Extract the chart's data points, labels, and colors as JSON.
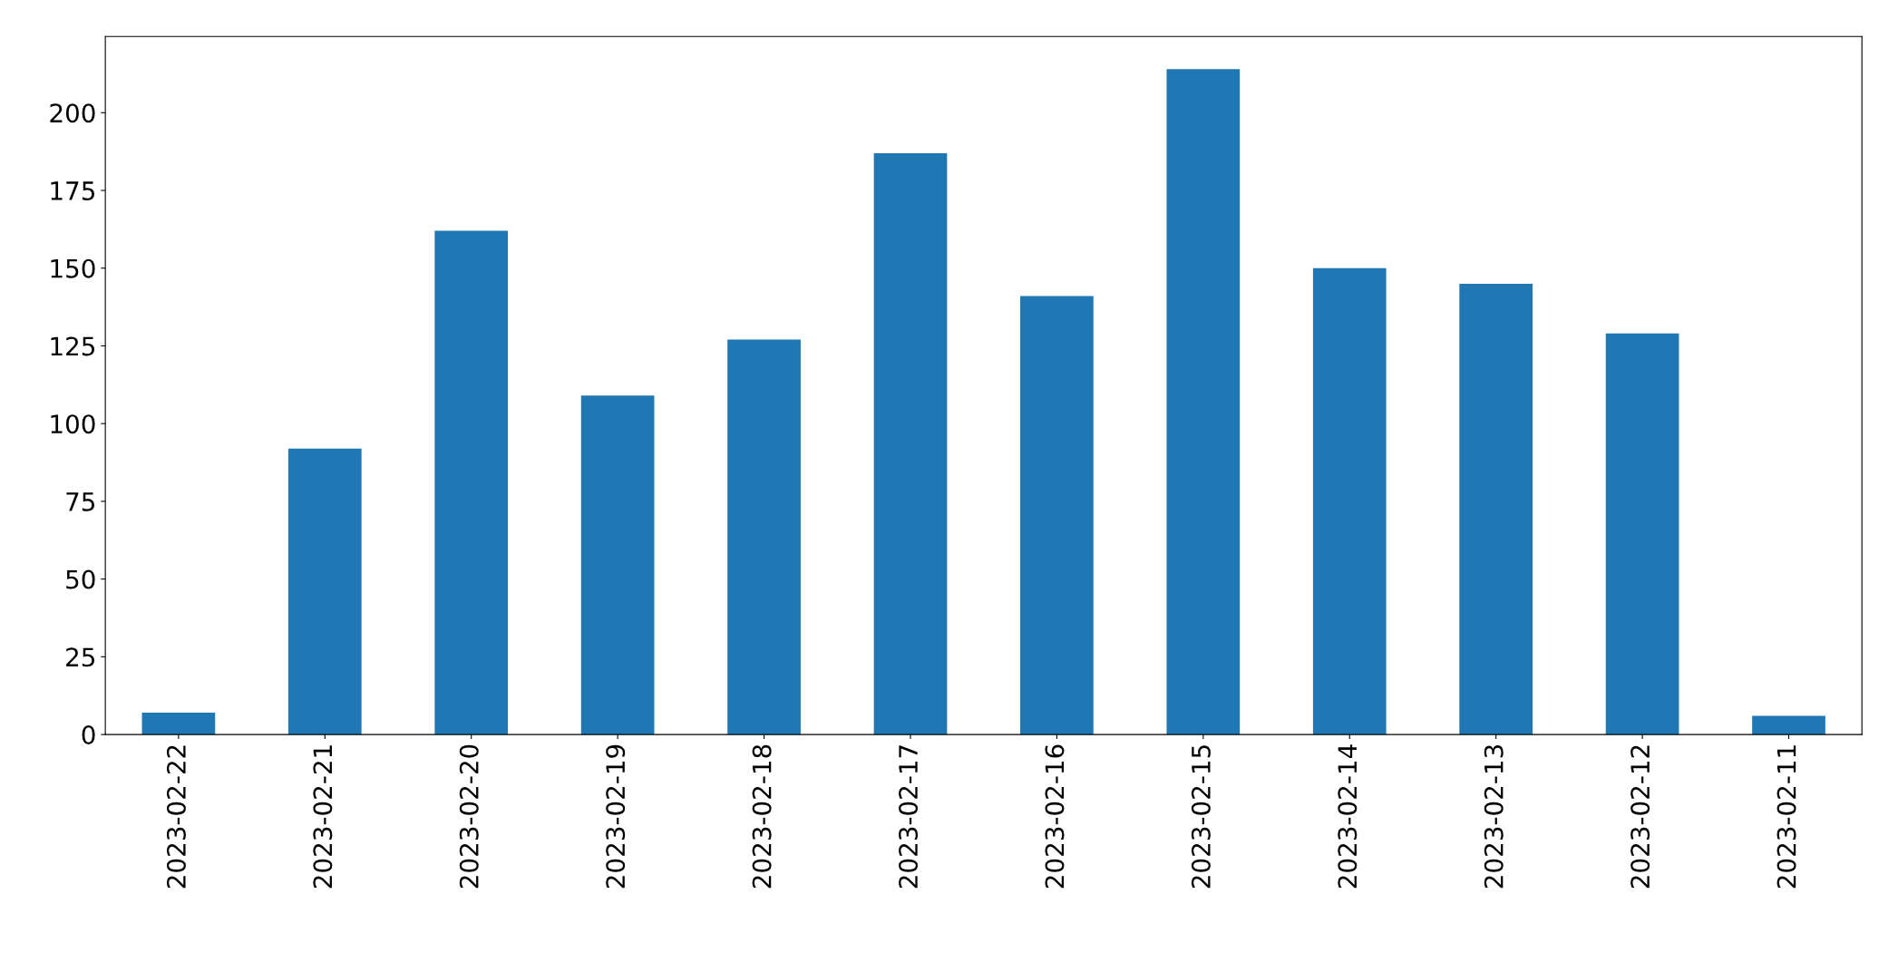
{
  "chart_data": {
    "type": "bar",
    "categories": [
      "2023-02-22",
      "2023-02-21",
      "2023-02-20",
      "2023-02-19",
      "2023-02-18",
      "2023-02-17",
      "2023-02-16",
      "2023-02-15",
      "2023-02-14",
      "2023-02-13",
      "2023-02-12",
      "2023-02-11"
    ],
    "values": [
      7,
      92,
      162,
      109,
      127,
      187,
      141,
      214,
      150,
      145,
      129,
      6
    ],
    "color": "#1f77b4",
    "ylim": [
      0,
      224.5
    ],
    "yticks": [
      0,
      25,
      50,
      75,
      100,
      125,
      150,
      175,
      200
    ],
    "grid": false,
    "legend": false
  }
}
